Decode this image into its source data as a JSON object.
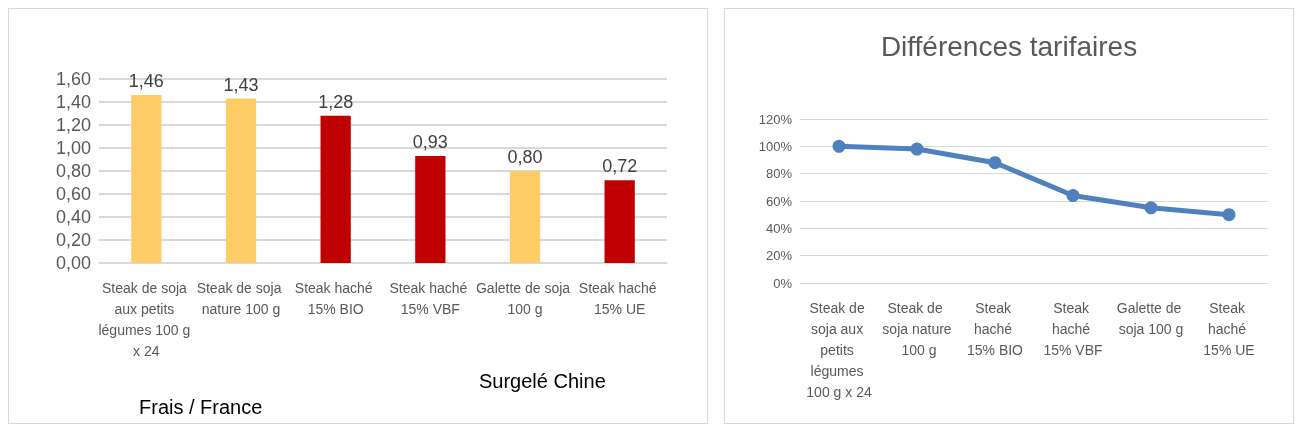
{
  "chart_data": [
    {
      "type": "bar",
      "categories": [
        "Steak de soja aux petits légumes 100 g x 24",
        "Steak de soja nature 100 g",
        "Steak haché 15% BIO",
        "Steak haché 15% VBF",
        "Galette de soja 100 g",
        "Steak haché 15% UE"
      ],
      "values": [
        1.46,
        1.43,
        1.28,
        0.93,
        0.8,
        0.72
      ],
      "colors": [
        "#ffcc66",
        "#ffcc66",
        "#c00000",
        "#c00000",
        "#ffcc66",
        "#c00000"
      ],
      "value_labels": [
        "1,46",
        "1,43",
        "1,28",
        "0,93",
        "0,80",
        "0,72"
      ],
      "ylim": [
        0,
        1.6
      ],
      "yticks": [
        {
          "value": 0,
          "label": "0,00"
        },
        {
          "value": 0.2,
          "label": "0,20"
        },
        {
          "value": 0.4,
          "label": "0,40"
        },
        {
          "value": 0.6,
          "label": "0,60"
        },
        {
          "value": 0.8,
          "label": "0,80"
        },
        {
          "value": 1,
          "label": "1,00"
        },
        {
          "value": 1.2,
          "label": "1,20"
        },
        {
          "value": 1.4,
          "label": "1,40"
        },
        {
          "value": 1.6,
          "label": "1,60"
        }
      ],
      "grid": "y",
      "annotations": [
        "Surgelé Chine",
        "Frais / France"
      ]
    },
    {
      "type": "line",
      "title": "Différences tarifaires",
      "categories": [
        "Steak de soja aux petits légumes 100 g x 24",
        "Steak de soja nature 100 g",
        "Steak haché 15% BIO",
        "Steak haché 15% VBF",
        "Galette de soja 100 g",
        "Steak haché 15% UE"
      ],
      "series": [
        {
          "color": "#4f81bd",
          "values": [
            100,
            98,
            88,
            64,
            55,
            50
          ]
        }
      ],
      "ylim": [
        0,
        120
      ],
      "yticks": [
        {
          "value": 0,
          "label": "0%"
        },
        {
          "value": 20,
          "label": "20%"
        },
        {
          "value": 40,
          "label": "40%"
        },
        {
          "value": 60,
          "label": "60%"
        },
        {
          "value": 80,
          "label": "80%"
        },
        {
          "value": 100,
          "label": "100%"
        },
        {
          "value": 120,
          "label": "120%"
        }
      ],
      "grid": "y",
      "marker": "circle",
      "line_style": "solid"
    }
  ]
}
